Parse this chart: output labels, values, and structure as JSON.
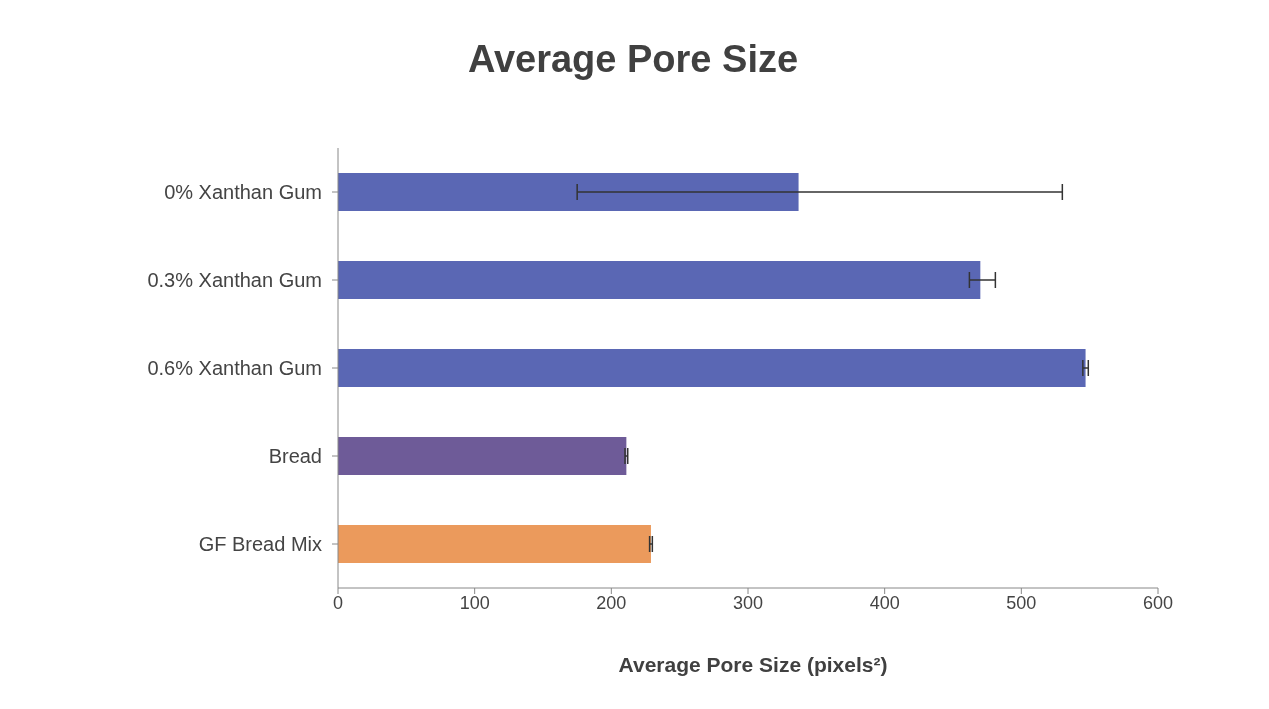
{
  "chart_data": {
    "type": "bar",
    "orientation": "horizontal",
    "title": "Average Pore Size",
    "xlabel": "Average Pore Size (pixels²)",
    "categories": [
      "0% Xanthan Gum",
      "0.3% Xanthan Gum",
      "0.6% Xanthan Gum",
      "Bread",
      "GF Bread Mix"
    ],
    "values": [
      337,
      470,
      547,
      211,
      229
    ],
    "errors": [
      [
        175,
        530
      ],
      [
        462,
        481
      ],
      [
        545,
        549
      ],
      [
        210,
        212
      ],
      [
        228,
        230
      ]
    ],
    "colors": [
      "#5a67b4",
      "#5a67b4",
      "#5a67b4",
      "#6e5b98",
      "#eb9a5c"
    ],
    "xlim": [
      0,
      600
    ],
    "xticks": [
      0,
      100,
      200,
      300,
      400,
      500,
      600
    ],
    "grid": false,
    "legend": false
  }
}
